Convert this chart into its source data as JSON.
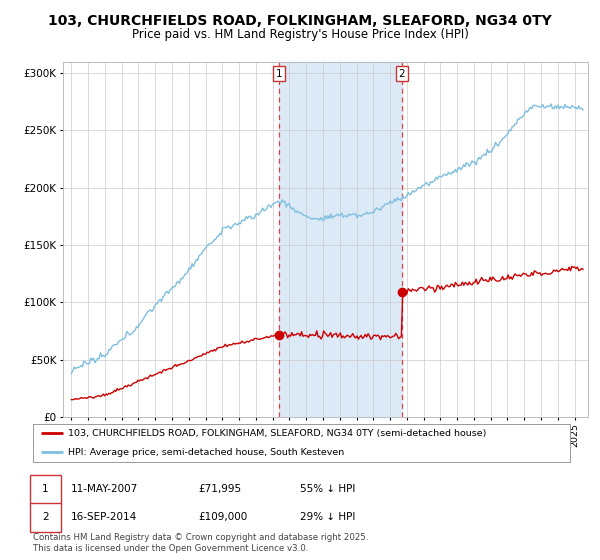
{
  "title": "103, CHURCHFIELDS ROAD, FOLKINGHAM, SLEAFORD, NG34 0TY",
  "subtitle": "Price paid vs. HM Land Registry's House Price Index (HPI)",
  "title_fontsize": 10,
  "subtitle_fontsize": 8.5,
  "background_color": "#ffffff",
  "plot_bg_color": "#ffffff",
  "grid_color": "#cccccc",
  "legend_entry1": "103, CHURCHFIELDS ROAD, FOLKINGHAM, SLEAFORD, NG34 0TY (semi-detached house)",
  "legend_entry2": "HPI: Average price, semi-detached house, South Kesteven",
  "hpi_color": "#7fbfdf",
  "price_color": "#cc0000",
  "sale1_date": 2007.36,
  "sale1_price": 71995,
  "sale2_date": 2014.71,
  "sale2_price": 109000,
  "footnote": "Contains HM Land Registry data © Crown copyright and database right 2025.\nThis data is licensed under the Open Government Licence v3.0.",
  "ylim_max": 310000,
  "xmin": 1994.5,
  "xmax": 2025.8,
  "highlight_color": "#dce9f7"
}
